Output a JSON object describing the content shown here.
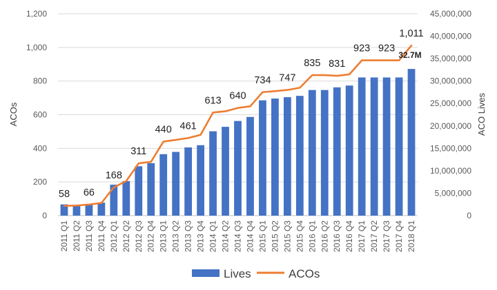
{
  "chart_data": {
    "type": "bar",
    "categories": [
      "2011 Q1",
      "2011 Q2",
      "2011 Q3",
      "2011 Q4",
      "2012 Q1",
      "2012 Q2",
      "2012 Q3",
      "2012 Q4",
      "2013 Q1",
      "2013 Q2",
      "2013 Q3",
      "2013 Q4",
      "2014 Q1",
      "2014 Q2",
      "2014 Q3",
      "2014 Q4",
      "2015 Q1",
      "2015 Q2",
      "2015 Q3",
      "2015 Q4",
      "2016 Q1",
      "2016 Q2",
      "2016 Q3",
      "2016 Q4",
      "2017 Q1",
      "2017 Q2",
      "2017 Q3",
      "2017 Q4",
      "2018 Q1"
    ],
    "series": [
      {
        "name": "Lives",
        "type": "bar",
        "axis": "right",
        "color": "#4472C4",
        "values": [
          2500000,
          2400000,
          2600000,
          2900000,
          6900000,
          7700000,
          11000000,
          11700000,
          13700000,
          14200000,
          15200000,
          15700000,
          18800000,
          19800000,
          21100000,
          22000000,
          25700000,
          26100000,
          26400000,
          26700000,
          28000000,
          28000000,
          28600000,
          29000000,
          30800000,
          30800000,
          30800000,
          30800000,
          32700000
        ]
      },
      {
        "name": "ACOs",
        "type": "line",
        "axis": "left",
        "color": "#ED7D31",
        "values": [
          58,
          60,
          66,
          75,
          168,
          205,
          311,
          320,
          440,
          450,
          461,
          480,
          613,
          620,
          640,
          650,
          734,
          740,
          747,
          760,
          835,
          835,
          831,
          840,
          923,
          923,
          923,
          923,
          1011
        ]
      }
    ],
    "data_labels": [
      {
        "series": "ACOs",
        "index": 0,
        "text": "58"
      },
      {
        "series": "ACOs",
        "index": 2,
        "text": "66"
      },
      {
        "series": "ACOs",
        "index": 4,
        "text": "168"
      },
      {
        "series": "ACOs",
        "index": 6,
        "text": "311"
      },
      {
        "series": "ACOs",
        "index": 8,
        "text": "440"
      },
      {
        "series": "ACOs",
        "index": 10,
        "text": "461"
      },
      {
        "series": "ACOs",
        "index": 12,
        "text": "613"
      },
      {
        "series": "ACOs",
        "index": 14,
        "text": "640"
      },
      {
        "series": "ACOs",
        "index": 16,
        "text": "734"
      },
      {
        "series": "ACOs",
        "index": 18,
        "text": "747"
      },
      {
        "series": "ACOs",
        "index": 20,
        "text": "835"
      },
      {
        "series": "ACOs",
        "index": 22,
        "text": "831"
      },
      {
        "series": "ACOs",
        "index": 24,
        "text": "923"
      },
      {
        "series": "ACOs",
        "index": 26,
        "text": "923"
      },
      {
        "series": "ACOs",
        "index": 28,
        "text": "1,011"
      },
      {
        "series": "Lives",
        "index": 28,
        "text": "32.7M",
        "bold": true
      }
    ],
    "ylabel_left": "ACOs",
    "ylabel_right": "ACO Lives",
    "ylim_left": [
      0,
      1200
    ],
    "ylim_right": [
      0,
      45000000
    ],
    "left_ticks": [
      "0",
      "200",
      "400",
      "600",
      "800",
      "1,000",
      "1,200"
    ],
    "right_ticks": [
      "0",
      "5,000,000",
      "10,000,000",
      "15,000,000",
      "20,000,000",
      "25,000,000",
      "30,000,000",
      "35,000,000",
      "40,000,000",
      "45,000,000"
    ],
    "grid": true,
    "legend_position": "bottom",
    "legend": [
      "Lives",
      "ACOs"
    ]
  }
}
